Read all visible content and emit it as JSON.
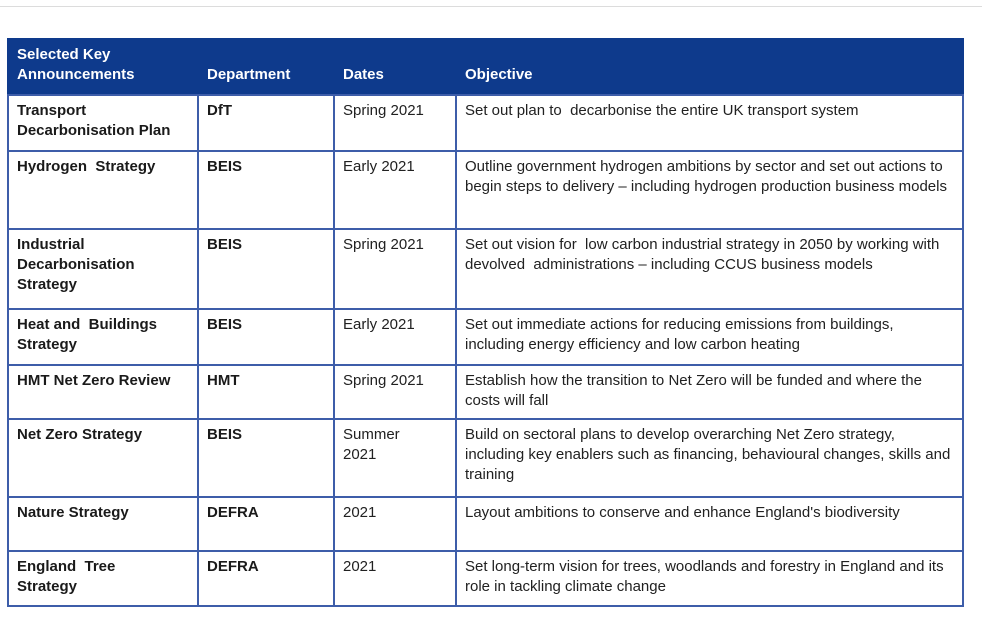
{
  "colors": {
    "header_bg": "#0E3A8C",
    "header_text": "#FFFFFF",
    "grid_border": "#3D5DA9",
    "body_text": "#212121"
  },
  "table": {
    "columns": [
      {
        "label": "Selected Key\nAnnouncements"
      },
      {
        "label": "Department"
      },
      {
        "label": "Dates"
      },
      {
        "label": "Objective"
      }
    ],
    "rows": [
      {
        "announcement": "Transport\nDecarbonisation Plan",
        "department": "DfT",
        "dates": "Spring 2021",
        "objective": "Set out plan to  decarbonise the entire UK transport system"
      },
      {
        "announcement": "Hydrogen  Strategy",
        "department": "BEIS",
        "dates": "Early 2021",
        "objective": "Outline government hydrogen ambitions by sector and set out actions to begin steps to delivery – including hydrogen production business models"
      },
      {
        "announcement": "Industrial\nDecarbonisation\nStrategy",
        "department": "BEIS",
        "dates": "Spring 2021",
        "objective": "Set out vision for  low carbon industrial strategy in 2050 by working with devolved  administrations – including CCUS business models"
      },
      {
        "announcement": "Heat and  Buildings\nStrategy",
        "department": "BEIS",
        "dates": "Early 2021",
        "objective": "Set out immediate actions for reducing emissions from buildings, including energy efficiency and low carbon heating"
      },
      {
        "announcement": "HMT Net Zero Review",
        "department": "HMT",
        "dates": "Spring 2021",
        "objective": "Establish how the transition to Net Zero will be funded and where the costs will fall"
      },
      {
        "announcement": "Net Zero Strategy",
        "department": "BEIS",
        "dates": "Summer\n2021",
        "objective": "Build on sectoral plans to develop overarching Net Zero strategy, including key enablers such as financing, behavioural changes, skills and training"
      },
      {
        "announcement": "Nature Strategy",
        "department": "DEFRA",
        "dates": "2021",
        "objective": "Layout ambitions to conserve and enhance England's biodiversity"
      },
      {
        "announcement": "England  Tree\nStrategy",
        "department": "DEFRA",
        "dates": "2021",
        "objective": "Set long-term vision for trees, woodlands and forestry in England and its role in tackling climate change"
      }
    ]
  }
}
